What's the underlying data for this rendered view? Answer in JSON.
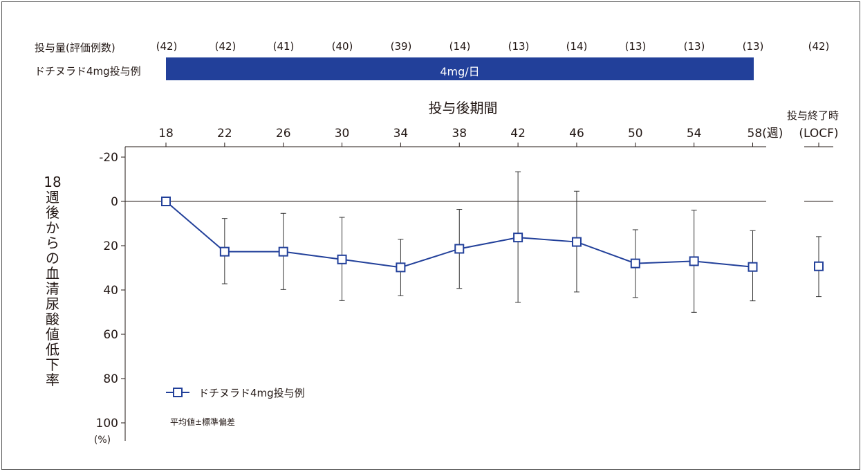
{
  "header": {
    "dose_label": "投与量(評価例数)",
    "drug_label": "ドチヌラド4mg投与例",
    "dose_bar_label": "4mg/日",
    "counts": [
      "(42)",
      "(42)",
      "(41)",
      "(40)",
      "(39)",
      "(14)",
      "(13)",
      "(14)",
      "(13)",
      "(13)",
      "(13)",
      "(42)"
    ],
    "period_title": "投与後期間",
    "end_title": "投与終了時"
  },
  "y_axis_label_chars": [
    "18",
    "週",
    "後",
    "か",
    "ら",
    "の",
    "血",
    "清",
    "尿",
    "酸",
    "値",
    "低",
    "下",
    "率"
  ],
  "legend": {
    "label": "ドチヌラド4mg投与例",
    "note": "平均値±標準偏差"
  },
  "chart_data": {
    "type": "line",
    "x": [
      18,
      22,
      26,
      30,
      34,
      38,
      42,
      46,
      50,
      54,
      58
    ],
    "xtick_labels": [
      "18",
      "22",
      "26",
      "30",
      "34",
      "38",
      "42",
      "46",
      "50",
      "54",
      "58(週)"
    ],
    "extra_category": "(LOCF)",
    "ylim": [
      -20,
      100
    ],
    "yticks": [
      -20,
      0,
      20,
      40,
      60,
      80,
      100
    ],
    "y_inverted": true,
    "y_unit": "(%)",
    "series": [
      {
        "name": "ドチヌラド4mg投与例",
        "color": "#22409a",
        "mean": [
          0,
          22.7,
          22.7,
          26.2,
          29.8,
          21.4,
          16.3,
          18.3,
          28.0,
          27.0,
          29.6
        ],
        "lower": [
          0,
          7.7,
          5.4,
          7.2,
          17.1,
          3.6,
          -13.4,
          -4.6,
          12.8,
          4.0,
          13.2
        ],
        "upper": [
          0,
          37.2,
          39.8,
          44.8,
          42.6,
          39.3,
          45.6,
          40.9,
          43.4,
          50.1,
          44.9
        ],
        "locf": {
          "mean": 29.3,
          "lower": 15.9,
          "upper": 43.0
        }
      }
    ]
  }
}
